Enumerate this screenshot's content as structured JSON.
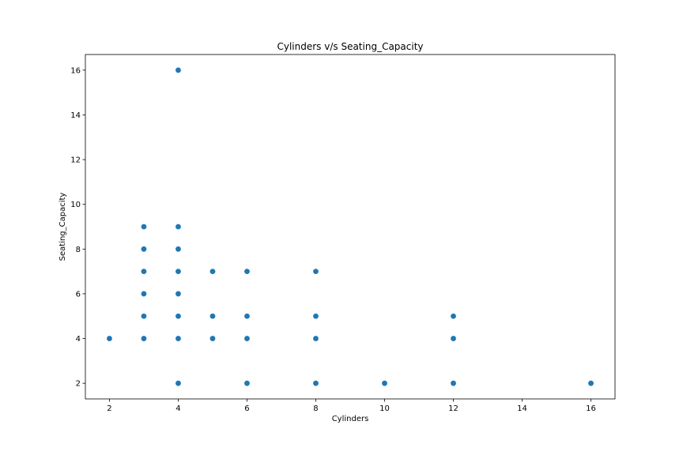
{
  "chart_data": {
    "type": "scatter",
    "title": "Cylinders v/s Seating_Capacity",
    "xlabel": "Cylinders",
    "ylabel": "Seating_Capacity",
    "xlim": [
      1.3,
      16.7
    ],
    "ylim": [
      1.3,
      16.7
    ],
    "xticks": [
      2,
      4,
      6,
      8,
      10,
      12,
      14,
      16
    ],
    "yticks": [
      2,
      4,
      6,
      8,
      10,
      12,
      14,
      16
    ],
    "grid": false,
    "marker_color": "#1f77b4",
    "points": [
      {
        "x": 2,
        "y": 4
      },
      {
        "x": 3,
        "y": 4
      },
      {
        "x": 3,
        "y": 5
      },
      {
        "x": 3,
        "y": 6
      },
      {
        "x": 3,
        "y": 7
      },
      {
        "x": 3,
        "y": 8
      },
      {
        "x": 3,
        "y": 9
      },
      {
        "x": 4,
        "y": 2
      },
      {
        "x": 4,
        "y": 4
      },
      {
        "x": 4,
        "y": 5
      },
      {
        "x": 4,
        "y": 6
      },
      {
        "x": 4,
        "y": 7
      },
      {
        "x": 4,
        "y": 8
      },
      {
        "x": 4,
        "y": 9
      },
      {
        "x": 4,
        "y": 16
      },
      {
        "x": 5,
        "y": 4
      },
      {
        "x": 5,
        "y": 5
      },
      {
        "x": 5,
        "y": 7
      },
      {
        "x": 6,
        "y": 2
      },
      {
        "x": 6,
        "y": 4
      },
      {
        "x": 6,
        "y": 5
      },
      {
        "x": 6,
        "y": 7
      },
      {
        "x": 8,
        "y": 2
      },
      {
        "x": 8,
        "y": 4
      },
      {
        "x": 8,
        "y": 5
      },
      {
        "x": 8,
        "y": 7
      },
      {
        "x": 10,
        "y": 2
      },
      {
        "x": 12,
        "y": 2
      },
      {
        "x": 12,
        "y": 4
      },
      {
        "x": 12,
        "y": 5
      },
      {
        "x": 16,
        "y": 2
      }
    ]
  }
}
